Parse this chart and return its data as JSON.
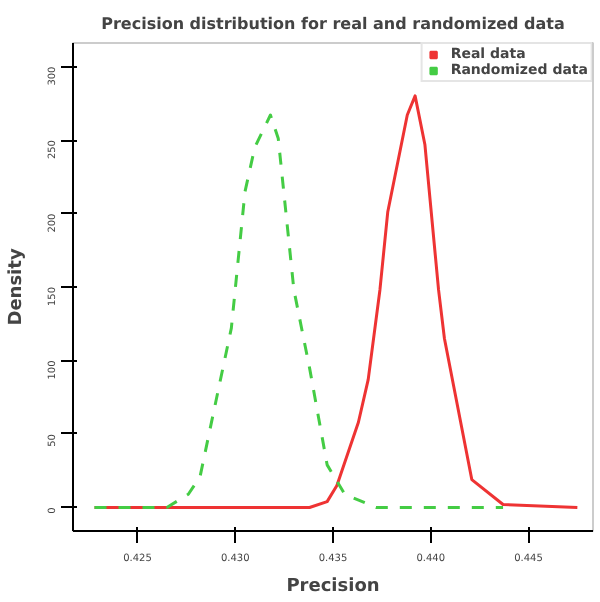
{
  "chart_data": {
    "type": "line",
    "title": "Precision distribution for real and randomized data",
    "xlabel": "Precision",
    "ylabel": "Density",
    "xlim": [
      0.4217,
      0.4483
    ],
    "ylim": [
      -16,
      316
    ],
    "xticks": [
      0.425,
      {
        "value": 0.43,
        "label": "0.430"
      },
      0.435,
      {
        "value": 0.44,
        "label": "0.440"
      },
      0.445
    ],
    "yticks": [
      0,
      50,
      100,
      150,
      200,
      250,
      300
    ],
    "grid": false,
    "legend": "top right",
    "marker": "none",
    "series": [
      {
        "name": "Real data",
        "color": "#ee3333",
        "line_style": "solid",
        "x": [
          0.4228,
          0.4338,
          0.4347,
          0.4352,
          0.4363,
          0.4368,
          0.4374,
          0.4378,
          0.4388,
          0.4392,
          0.4397,
          0.4404,
          0.4407,
          0.4421,
          0.4437,
          0.4475
        ],
        "values": [
          0,
          0,
          4,
          15,
          58,
          87,
          148,
          201,
          267,
          280,
          247,
          148,
          115,
          19,
          2,
          0
        ]
      },
      {
        "name": "Randomized data",
        "color": "#44cc44",
        "line_style": "dashed",
        "x": [
          0.4228,
          0.4265,
          0.4276,
          0.4282,
          0.4291,
          0.4298,
          0.4305,
          0.431,
          0.4318,
          0.4322,
          0.433,
          0.4338,
          0.4347,
          0.4356,
          0.4372,
          0.4437
        ],
        "values": [
          0,
          0,
          9,
          21,
          78,
          122,
          215,
          245,
          267,
          251,
          148,
          95,
          29,
          9,
          0,
          0
        ]
      }
    ]
  }
}
